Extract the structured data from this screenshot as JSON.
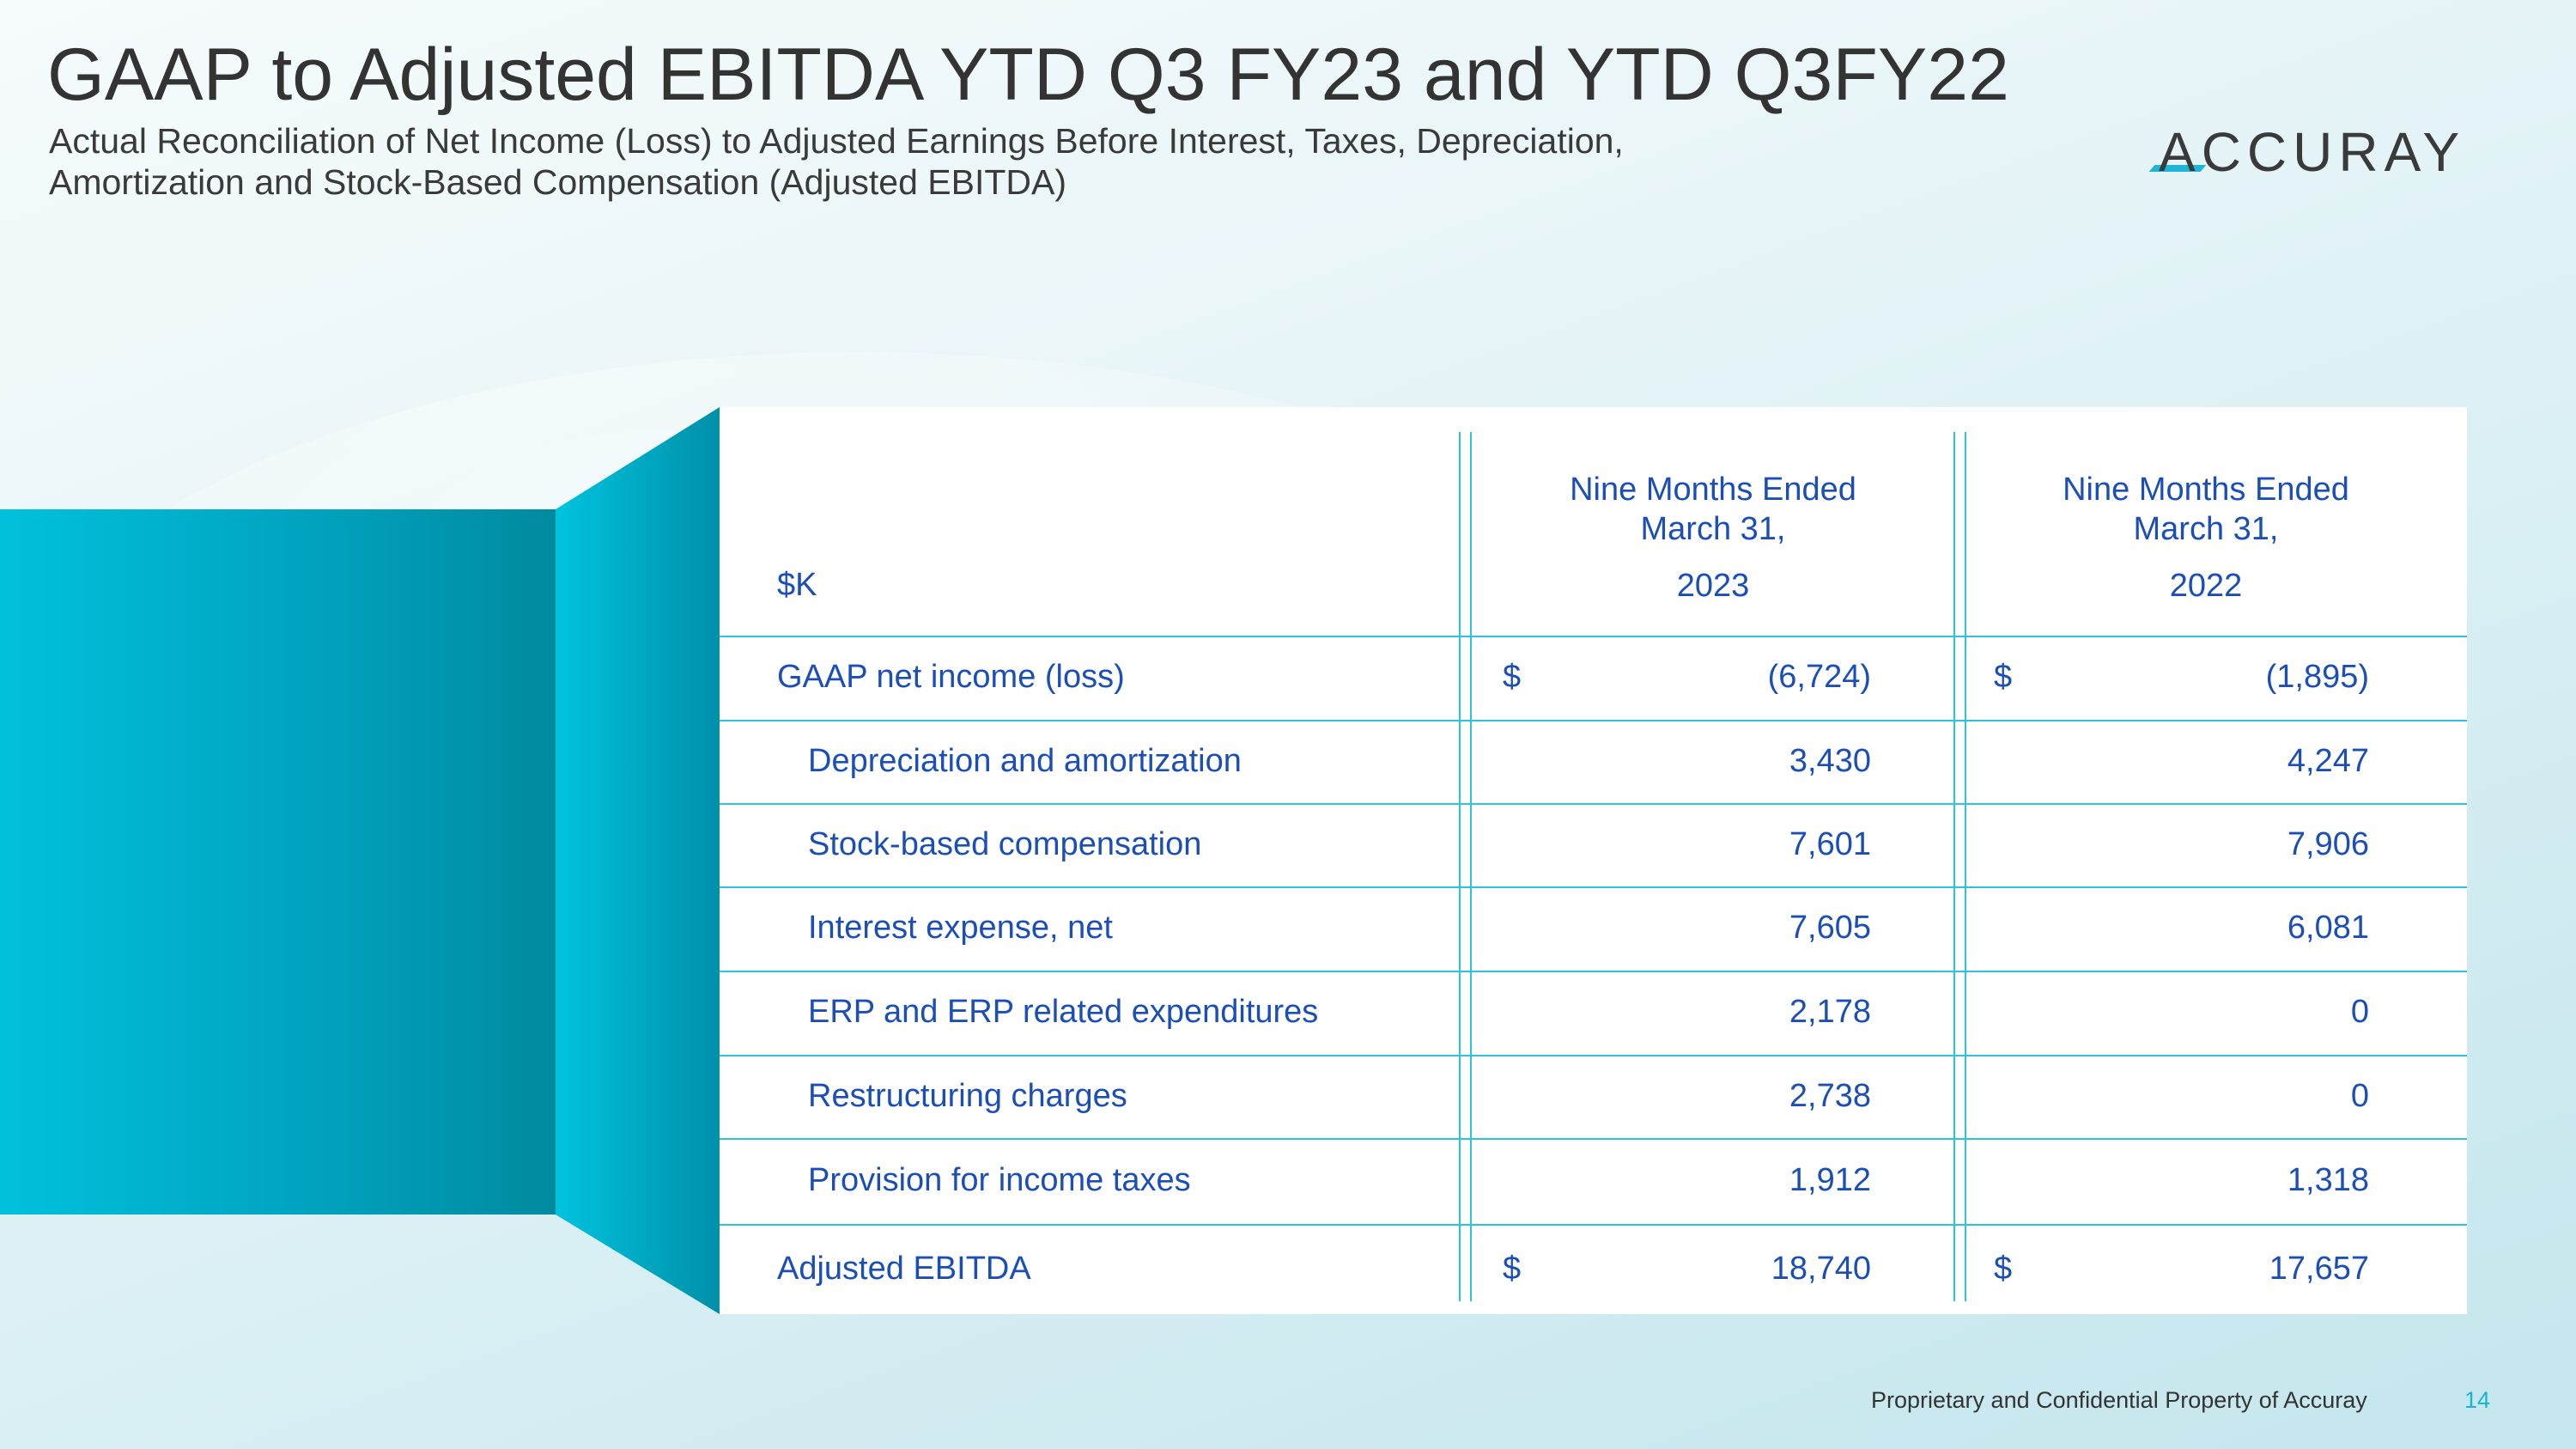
{
  "title": "GAAP to Adjusted EBITDA YTD Q3 FY23 and YTD Q3FY22",
  "subtitle_line1": "Actual Reconciliation of Net Income (Loss) to Adjusted Earnings Before Interest, Taxes, Depreciation,",
  "subtitle_line2": "Amortization and Stock-Based Compensation (Adjusted EBITDA)",
  "logo": "ACCURAY",
  "table": {
    "unit_label": "$K",
    "columns": [
      {
        "line1": "Nine Months Ended",
        "line2": "March 31,",
        "year": "2023"
      },
      {
        "line1": "Nine Months Ended",
        "line2": "March 31,",
        "year": "2022"
      }
    ],
    "rows": [
      {
        "label": "GAAP net income (loss)",
        "cur1": "$",
        "v1": "(6,724)",
        "cur2": "$",
        "v2": "(1,895)"
      },
      {
        "label": "Depreciation and amortization",
        "v1": "3,430",
        "v2": "4,247"
      },
      {
        "label": "Stock-based compensation",
        "v1": "7,601",
        "v2": "7,906"
      },
      {
        "label": "Interest expense, net",
        "v1": "7,605",
        "v2": "6,081"
      },
      {
        "label": "ERP and ERP related expenditures",
        "v1": "2,178",
        "v2": "0"
      },
      {
        "label": "Restructuring charges",
        "v1": "2,738",
        "v2": "0"
      },
      {
        "label": "Provision for income taxes",
        "v1": "1,912",
        "v2": "1,318"
      },
      {
        "label": "Adjusted EBITDA",
        "cur1": "$",
        "v1": "18,740",
        "cur2": "$",
        "v2": "17,657"
      }
    ]
  },
  "footer": "Proprietary and Confidential Property of Accuray",
  "page_number": "14",
  "colors": {
    "accent": "#00b4d0",
    "table_text": "#1c4fb5",
    "rule": "#2cc3dc"
  }
}
